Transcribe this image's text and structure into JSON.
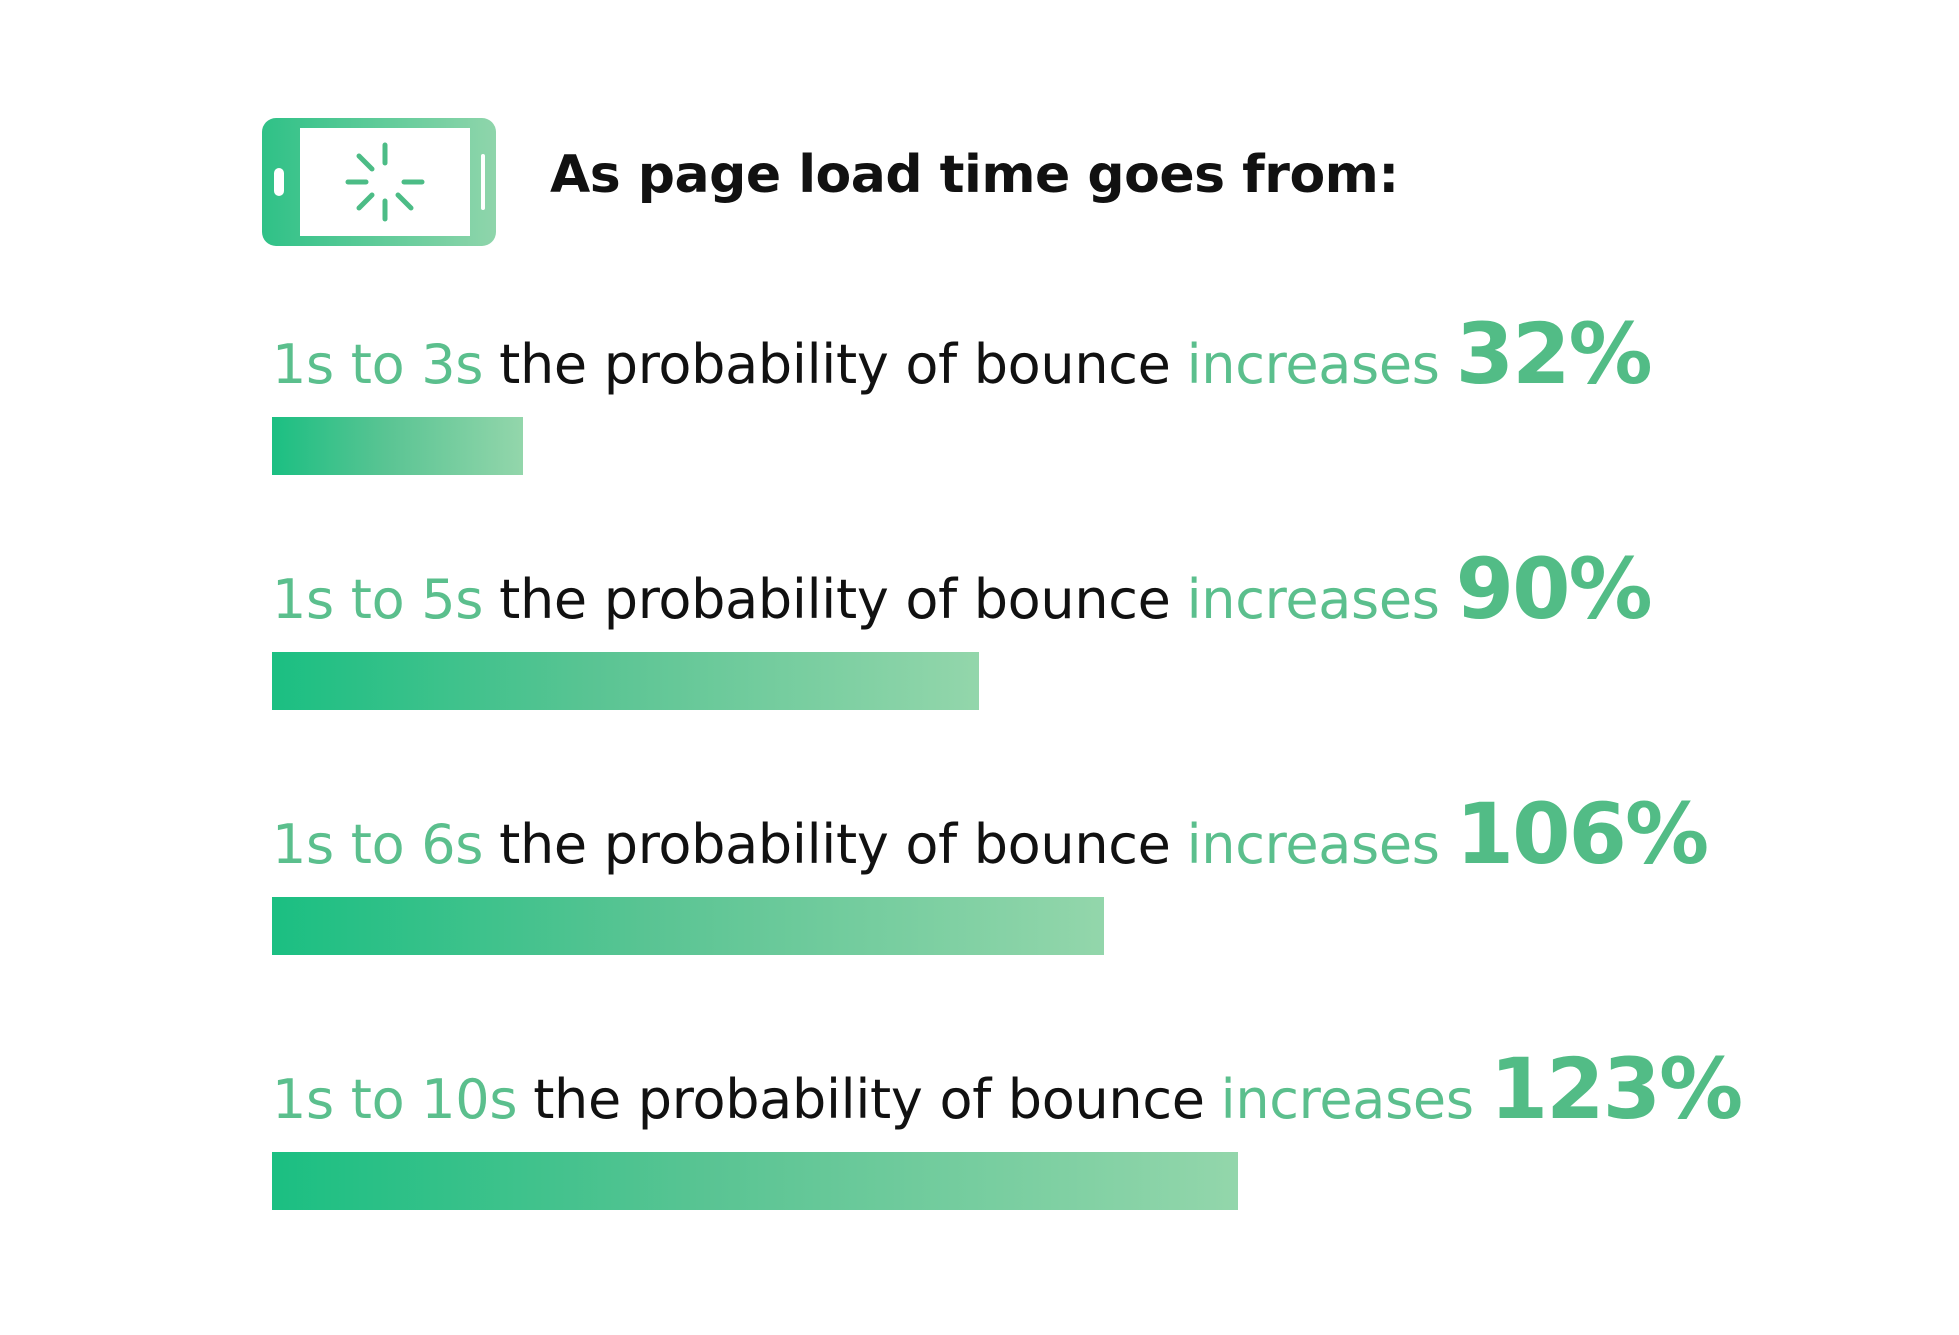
{
  "header": {
    "title": "As page load time goes from:",
    "icon": "phone-loading-icon"
  },
  "colors": {
    "accent": "#5bbf8d",
    "bar_start": "#1bbf82",
    "bar_end": "#93d6ab",
    "text": "#111111"
  },
  "rows": [
    {
      "range": "1s to 3s",
      "middle": "the probability of bounce",
      "verb": "increases",
      "pct": "32%"
    },
    {
      "range": "1s to 5s",
      "middle": "the probability of bounce",
      "verb": "increases",
      "pct": "90%"
    },
    {
      "range": "1s to 6s",
      "middle": "the probability of bounce",
      "verb": "increases",
      "pct": "106%"
    },
    {
      "range": "1s to 10s",
      "middle": "the probability of bounce",
      "verb": "increases",
      "pct": "123%"
    }
  ],
  "chart_data": {
    "type": "bar",
    "orientation": "horizontal",
    "title": "As page load time goes from:",
    "categories": [
      "1s to 3s",
      "1s to 5s",
      "1s to 6s",
      "1s to 10s"
    ],
    "values": [
      32,
      90,
      106,
      123
    ],
    "unit": "%",
    "xlim": [
      0,
      123
    ],
    "grid": false
  }
}
